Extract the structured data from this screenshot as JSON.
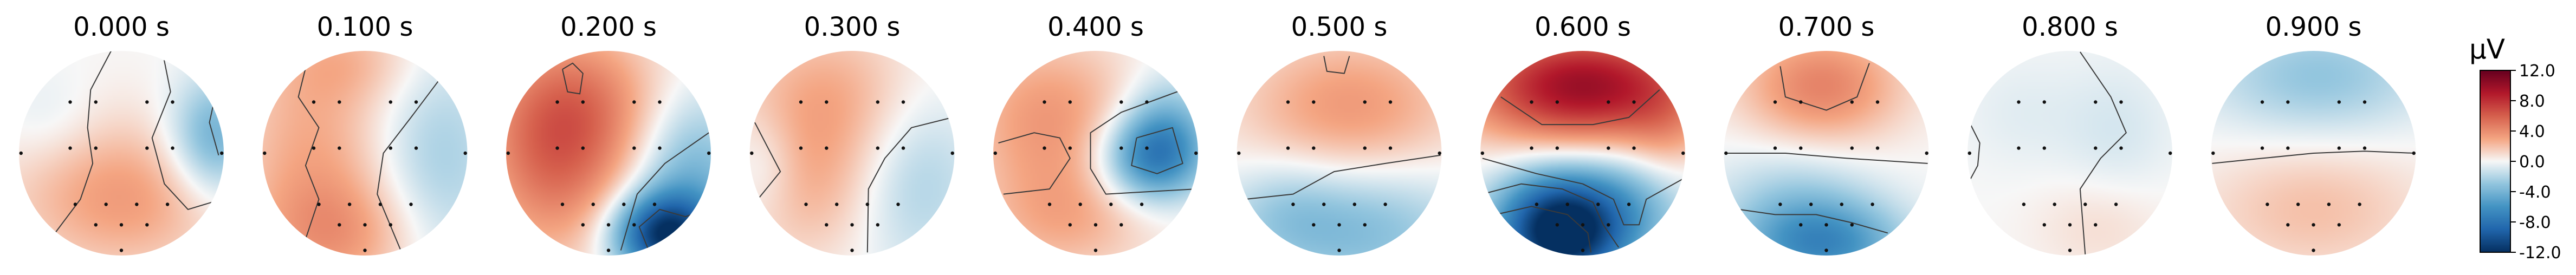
{
  "chart_data": {
    "type": "heatmap",
    "subtype": "eeg-topomap-series",
    "colormap": "RdBu_r",
    "panels": [
      {
        "title": "0.000 s",
        "blobs": [
          {
            "x": 0.9,
            "y": -0.15,
            "sx": 0.3,
            "sy": 0.4,
            "v": -4.5
          },
          {
            "x": -0.25,
            "y": 0.35,
            "sx": 0.7,
            "sy": 0.55,
            "v": 2.2
          },
          {
            "x": 0.25,
            "y": 0.5,
            "sx": 0.6,
            "sy": 0.45,
            "v": 1.5
          },
          {
            "x": -0.7,
            "y": -0.3,
            "sx": 0.35,
            "sy": 0.35,
            "v": -1.0
          }
        ],
        "contours": [
          {
            "pts": [
              [
                -0.1,
                -1.0
              ],
              [
                -0.3,
                -0.62
              ],
              [
                -0.33,
                -0.25
              ],
              [
                -0.28,
                0.1
              ],
              [
                -0.4,
                0.45
              ],
              [
                -0.7,
                0.85
              ]
            ]
          },
          {
            "pts": [
              [
                0.4,
                -1.0
              ],
              [
                0.48,
                -0.6
              ],
              [
                0.3,
                -0.15
              ],
              [
                0.42,
                0.3
              ],
              [
                0.65,
                0.55
              ],
              [
                0.98,
                0.45
              ]
            ]
          },
          {
            "pts": [
              [
                0.93,
                -0.62
              ],
              [
                0.86,
                -0.3
              ],
              [
                0.95,
                0.02
              ]
            ]
          }
        ]
      },
      {
        "title": "0.100 s",
        "blobs": [
          {
            "x": -0.5,
            "y": 0.0,
            "sx": 0.55,
            "sy": 0.9,
            "v": 2.8
          },
          {
            "x": -0.2,
            "y": 0.8,
            "sx": 0.6,
            "sy": 0.4,
            "v": 2.5
          },
          {
            "x": 0.7,
            "y": 0.1,
            "sx": 0.45,
            "sy": 0.8,
            "v": -2.5
          },
          {
            "x": -0.1,
            "y": -0.9,
            "sx": 0.5,
            "sy": 0.3,
            "v": 1.5
          }
        ],
        "contours": [
          {
            "pts": [
              [
                -0.55,
                -0.95
              ],
              [
                -0.65,
                -0.55
              ],
              [
                -0.45,
                -0.25
              ],
              [
                -0.58,
                0.12
              ],
              [
                -0.45,
                0.45
              ],
              [
                -0.6,
                0.9
              ]
            ]
          },
          {
            "pts": [
              [
                0.75,
                -0.75
              ],
              [
                0.45,
                -0.35
              ],
              [
                0.18,
                0.0
              ],
              [
                0.12,
                0.4
              ],
              [
                0.35,
                0.95
              ]
            ]
          }
        ]
      },
      {
        "title": "0.200 s",
        "blobs": [
          {
            "x": -0.35,
            "y": -0.45,
            "sx": 0.6,
            "sy": 0.55,
            "v": 5.0
          },
          {
            "x": -0.55,
            "y": 0.3,
            "sx": 0.5,
            "sy": 0.6,
            "v": 3.5
          },
          {
            "x": 0.55,
            "y": 0.8,
            "sx": 0.35,
            "sy": 0.28,
            "v": -11.0
          },
          {
            "x": 0.8,
            "y": 0.2,
            "sx": 0.4,
            "sy": 0.55,
            "v": -4.0
          }
        ],
        "contours": [
          {
            "pts": [
              [
                -0.45,
                -0.82
              ],
              [
                -0.4,
                -0.6
              ],
              [
                -0.28,
                -0.58
              ],
              [
                -0.25,
                -0.78
              ],
              [
                -0.35,
                -0.88
              ],
              [
                -0.45,
                -0.82
              ]
            ]
          },
          {
            "pts": [
              [
                0.98,
                -0.2
              ],
              [
                0.55,
                0.1
              ],
              [
                0.28,
                0.4
              ],
              [
                0.12,
                0.95
              ]
            ]
          },
          {
            "pts": [
              [
                0.4,
                0.97
              ],
              [
                0.3,
                0.72
              ],
              [
                0.5,
                0.55
              ],
              [
                0.75,
                0.62
              ],
              [
                0.88,
                0.58
              ]
            ]
          }
        ]
      },
      {
        "title": "0.300 s",
        "blobs": [
          {
            "x": -0.2,
            "y": -0.5,
            "sx": 0.65,
            "sy": 0.55,
            "v": 3.0
          },
          {
            "x": -0.4,
            "y": 0.4,
            "sx": 0.5,
            "sy": 0.5,
            "v": 2.0
          },
          {
            "x": 0.6,
            "y": 0.2,
            "sx": 0.45,
            "sy": 0.65,
            "v": -2.5
          },
          {
            "x": -0.85,
            "y": 0.1,
            "sx": 0.25,
            "sy": 0.35,
            "v": -1.5
          }
        ],
        "contours": [
          {
            "pts": [
              [
                0.98,
                -0.35
              ],
              [
                0.58,
                -0.25
              ],
              [
                0.32,
                0.05
              ],
              [
                0.16,
                0.35
              ],
              [
                0.15,
                0.97
              ]
            ]
          },
          {
            "pts": [
              [
                -0.95,
                -0.3
              ],
              [
                -0.82,
                -0.05
              ],
              [
                -0.7,
                0.18
              ],
              [
                -0.92,
                0.45
              ]
            ]
          }
        ]
      },
      {
        "title": "0.400 s",
        "blobs": [
          {
            "x": 0.55,
            "y": 0.05,
            "sx": 0.35,
            "sy": 0.3,
            "v": -7.0
          },
          {
            "x": 0.7,
            "y": -0.3,
            "sx": 0.3,
            "sy": 0.35,
            "v": -3.0
          },
          {
            "x": -0.45,
            "y": -0.35,
            "sx": 0.6,
            "sy": 0.55,
            "v": 3.5
          },
          {
            "x": -0.3,
            "y": 0.65,
            "sx": 0.6,
            "sy": 0.4,
            "v": 2.5
          }
        ],
        "contours": [
          {
            "pts": [
              [
                -0.95,
                -0.1
              ],
              [
                -0.6,
                -0.2
              ],
              [
                -0.35,
                -0.15
              ],
              [
                -0.25,
                0.05
              ],
              [
                -0.45,
                0.35
              ],
              [
                -0.9,
                0.4
              ]
            ]
          },
          {
            "pts": [
              [
                0.85,
                -0.62
              ],
              [
                0.25,
                -0.4
              ],
              [
                -0.05,
                -0.2
              ],
              [
                -0.05,
                0.15
              ],
              [
                0.1,
                0.4
              ],
              [
                0.98,
                0.35
              ]
            ]
          },
          {
            "pts": [
              [
                0.4,
                -0.15
              ],
              [
                0.75,
                -0.25
              ],
              [
                0.85,
                0.1
              ],
              [
                0.6,
                0.2
              ],
              [
                0.35,
                0.12
              ],
              [
                0.4,
                -0.15
              ]
            ]
          }
        ]
      },
      {
        "title": "0.500 s",
        "blobs": [
          {
            "x": 0.1,
            "y": -0.45,
            "sx": 0.75,
            "sy": 0.5,
            "v": 3.5
          },
          {
            "x": 0.2,
            "y": 0.75,
            "sx": 0.75,
            "sy": 0.45,
            "v": -3.5
          },
          {
            "x": -0.55,
            "y": 0.55,
            "sx": 0.4,
            "sy": 0.35,
            "v": -1.5
          }
        ],
        "contours": [
          {
            "pts": [
              [
                -0.92,
                0.45
              ],
              [
                -0.45,
                0.4
              ],
              [
                -0.05,
                0.18
              ],
              [
                0.45,
                0.1
              ],
              [
                0.99,
                0.02
              ]
            ]
          },
          {
            "pts": [
              [
                -0.15,
                -0.95
              ],
              [
                -0.12,
                -0.8
              ],
              [
                0.05,
                -0.78
              ],
              [
                0.1,
                -0.95
              ]
            ]
          }
        ]
      },
      {
        "title": "0.600 s",
        "blobs": [
          {
            "x": 0.0,
            "y": -0.65,
            "sx": 0.8,
            "sy": 0.4,
            "v": 10.0
          },
          {
            "x": -0.2,
            "y": 0.75,
            "sx": 0.45,
            "sy": 0.4,
            "v": -14.0
          },
          {
            "x": 0.6,
            "y": 0.45,
            "sx": 0.4,
            "sy": 0.4,
            "v": -3.0
          },
          {
            "x": 0.8,
            "y": -0.1,
            "sx": 0.3,
            "sy": 0.4,
            "v": 2.0
          }
        ],
        "contours": [
          {
            "pts": [
              [
                -0.8,
                -0.55
              ],
              [
                -0.4,
                -0.28
              ],
              [
                0.1,
                -0.28
              ],
              [
                0.45,
                -0.35
              ],
              [
                0.75,
                -0.62
              ]
            ]
          },
          {
            "pts": [
              [
                -0.98,
                0.05
              ],
              [
                -0.45,
                0.2
              ],
              [
                0.0,
                0.3
              ],
              [
                0.3,
                0.45
              ],
              [
                0.4,
                0.7
              ],
              [
                0.55,
                0.7
              ],
              [
                0.62,
                0.45
              ],
              [
                0.98,
                0.25
              ]
            ]
          },
          {
            "pts": [
              [
                -0.98,
                0.4
              ],
              [
                -0.6,
                0.3
              ],
              [
                -0.2,
                0.35
              ],
              [
                0.1,
                0.48
              ],
              [
                0.2,
                0.7
              ],
              [
                0.35,
                0.92
              ]
            ]
          },
          {
            "pts": [
              [
                -0.85,
                0.6
              ],
              [
                -0.5,
                0.52
              ],
              [
                -0.15,
                0.6
              ],
              [
                0.05,
                0.78
              ],
              [
                0.08,
                0.97
              ]
            ]
          }
        ]
      },
      {
        "title": "0.700 s",
        "blobs": [
          {
            "x": -0.05,
            "y": -0.65,
            "sx": 0.55,
            "sy": 0.4,
            "v": 4.5
          },
          {
            "x": -0.3,
            "y": 0.55,
            "sx": 0.55,
            "sy": 0.45,
            "v": -2.5
          },
          {
            "x": 0.0,
            "y": 0.9,
            "sx": 0.55,
            "sy": 0.3,
            "v": -5.5
          }
        ],
        "contours": [
          {
            "pts": [
              [
                -0.45,
                -0.85
              ],
              [
                -0.4,
                -0.55
              ],
              [
                0.0,
                -0.42
              ],
              [
                0.3,
                -0.55
              ],
              [
                0.42,
                -0.88
              ]
            ]
          },
          {
            "pts": [
              [
                -0.98,
                0.0
              ],
              [
                -0.4,
                0.0
              ],
              [
                0.2,
                0.05
              ],
              [
                0.99,
                0.1
              ]
            ]
          },
          {
            "pts": [
              [
                -0.85,
                0.55
              ],
              [
                -0.5,
                0.6
              ],
              [
                -0.1,
                0.6
              ],
              [
                0.25,
                0.68
              ],
              [
                0.6,
                0.78
              ]
            ]
          }
        ]
      },
      {
        "title": "0.800 s",
        "blobs": [
          {
            "x": 0.45,
            "y": -0.2,
            "sx": 0.4,
            "sy": 0.5,
            "v": -1.0
          },
          {
            "x": 0.3,
            "y": 0.7,
            "sx": 0.45,
            "sy": 0.35,
            "v": 1.0
          },
          {
            "x": -0.5,
            "y": -0.4,
            "sx": 0.4,
            "sy": 0.4,
            "v": -0.6
          }
        ],
        "contours": [
          {
            "pts": [
              [
                0.1,
                -0.99
              ],
              [
                0.4,
                -0.55
              ],
              [
                0.55,
                -0.2
              ],
              [
                0.3,
                0.05
              ],
              [
                0.1,
                0.35
              ],
              [
                0.15,
                0.99
              ]
            ]
          },
          {
            "pts": [
              [
                -0.97,
                -0.28
              ],
              [
                -0.88,
                -0.1
              ],
              [
                -0.9,
                0.12
              ],
              [
                -0.97,
                0.25
              ]
            ]
          }
        ]
      },
      {
        "title": "0.900 s",
        "blobs": [
          {
            "x": 0.05,
            "y": -0.75,
            "sx": 0.75,
            "sy": 0.4,
            "v": -3.0
          },
          {
            "x": 0.0,
            "y": 0.55,
            "sx": 0.75,
            "sy": 0.45,
            "v": 2.0
          }
        ],
        "contours": [
          {
            "pts": [
              [
                -0.99,
                0.1
              ],
              [
                -0.5,
                0.05
              ],
              [
                0.0,
                0.0
              ],
              [
                0.5,
                -0.02
              ],
              [
                0.99,
                0.0
              ]
            ]
          }
        ]
      }
    ],
    "colorbar": {
      "label": "µV",
      "range": [
        -12.0,
        12.0
      ],
      "ticks": [
        "12.0",
        "8.0",
        "4.0",
        "0.0",
        "-4.0",
        "-8.0",
        "-12.0"
      ]
    }
  }
}
